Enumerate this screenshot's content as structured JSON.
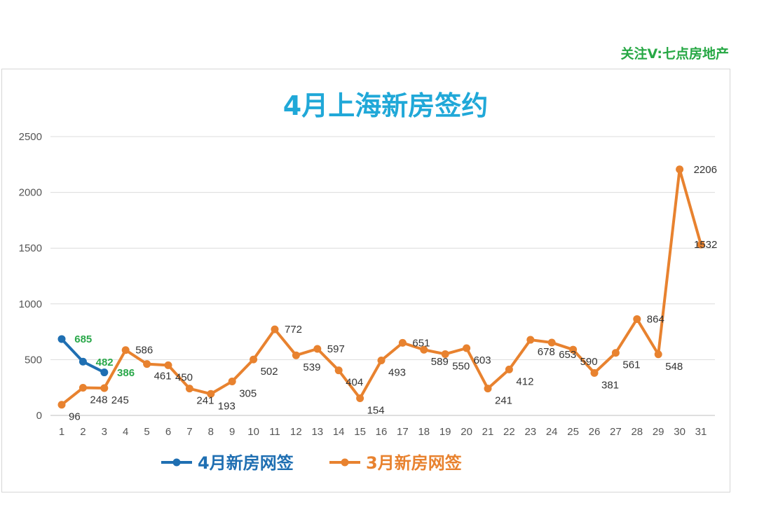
{
  "watermark": "关注V:七点房地产",
  "chart_data": {
    "type": "line",
    "title": "4月上海新房签约",
    "xlabel": "",
    "ylabel": "",
    "ylim": [
      0,
      2500
    ],
    "yticks": [
      0,
      500,
      1000,
      1500,
      2000,
      2500
    ],
    "x": [
      1,
      2,
      3,
      4,
      5,
      6,
      7,
      8,
      9,
      10,
      11,
      12,
      13,
      14,
      15,
      16,
      17,
      18,
      19,
      20,
      21,
      22,
      23,
      24,
      25,
      26,
      27,
      28,
      29,
      30,
      31
    ],
    "grid": true,
    "legend": "bottom",
    "series": [
      {
        "name": "4月新房网签",
        "color": "#1f6fb2",
        "x": [
          1,
          2,
          3
        ],
        "values": [
          685,
          482,
          386
        ]
      },
      {
        "name": "3月新房网签",
        "color": "#e8822f",
        "x": [
          1,
          2,
          3,
          4,
          5,
          6,
          7,
          8,
          9,
          10,
          11,
          12,
          13,
          14,
          15,
          16,
          17,
          18,
          19,
          20,
          21,
          22,
          23,
          24,
          25,
          26,
          27,
          28,
          29,
          30,
          31
        ],
        "values": [
          96,
          248,
          245,
          586,
          461,
          450,
          241,
          193,
          305,
          502,
          772,
          539,
          597,
          404,
          154,
          493,
          651,
          589,
          550,
          603,
          241,
          412,
          678,
          653,
          590,
          381,
          561,
          864,
          548,
          2206,
          1532
        ]
      }
    ]
  }
}
